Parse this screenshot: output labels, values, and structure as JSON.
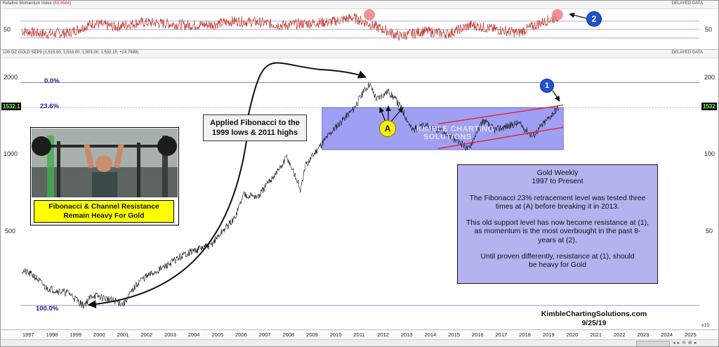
{
  "rmi_panel": {
    "title": "Relative Momentum Index",
    "value": "(69.4564)",
    "status": "DELAYED DATA",
    "y_tick": "50"
  },
  "price_panel": {
    "title": "100 OZ GOLD SEP9 (1,515.50, 1,533.00, 1,503.00, 1,532.10, +24.7999)",
    "status": "DELAYED DATA",
    "last_price_left": "1532.1",
    "last_price_right": "1532",
    "left_ticks": [
      "2000",
      "1000",
      "500"
    ],
    "right_ticks": [
      "200",
      "100",
      "50"
    ],
    "x10_label": "x10"
  },
  "fib_labels": {
    "top": "0.0%",
    "mid": "23.6%",
    "bottom": "100.0%"
  },
  "callout_fib": {
    "line1": "Applied Fibonacci to the",
    "line2": "1999 lows & 2011 highs"
  },
  "photo_caption": {
    "line1": "Fibonacci & Channel Resistance",
    "line2": "Remain Heavy For Gold"
  },
  "info_box": {
    "title1": "Gold Weekly",
    "title2": "1997 to Present",
    "p1": "The Fibonacci 23% retracement level was tested three times at (A) before breaking it in 2013.",
    "p2": "This old support level has now become resistance at (1), as momentum is the most overbought in the past 8-years at (2).",
    "p3": "Until proven differently, resistance at (1), should be heavy for Gold"
  },
  "markers": {
    "one": "1",
    "two": "2",
    "a": "A"
  },
  "watermark": {
    "line1": "KIMBLE CHARTING",
    "line2": "SOLUTIONS"
  },
  "credit": {
    "site": "KimbleChartingSolutions.com",
    "date": "9/25/19"
  },
  "colors": {
    "price_line": "#111111",
    "rmi_line": "#c0392b",
    "fib_box": "#8080f0",
    "channel": "#e0242c",
    "badge_blue": "#1d55cf",
    "callout_yellow": "#ffff00",
    "info_box": "#b3b3f0",
    "fib_line": "#7070c0"
  },
  "chart_data": [
    {
      "type": "line",
      "title": "Relative Momentum Index",
      "series": [
        {
          "name": "Relative Momentum Index",
          "x": [
            1997,
            1998,
            1999,
            2000,
            2001,
            2002,
            2003,
            2004,
            2005,
            2006,
            2007,
            2008,
            2009,
            2010,
            2011,
            2012,
            2013,
            2014,
            2015,
            2016,
            2017,
            2018,
            2019,
            2019.7
          ],
          "values": [
            45,
            40,
            42,
            58,
            52,
            60,
            58,
            55,
            56,
            62,
            60,
            55,
            58,
            60,
            68,
            52,
            36,
            45,
            40,
            55,
            48,
            42,
            60,
            69.5
          ]
        }
      ],
      "ylim": [
        20,
        80
      ],
      "y_ticks": [
        50
      ]
    },
    {
      "type": "line",
      "title": "100 OZ GOLD SEP9",
      "x_ticks": [
        "1997",
        "1998",
        "1999",
        "2000",
        "2001",
        "2002",
        "2003",
        "2004",
        "2005",
        "2006",
        "2007",
        "2008",
        "2009",
        "2010",
        "2011",
        "2012",
        "2013",
        "2014",
        "2015",
        "2016",
        "2017",
        "2018",
        "2019",
        "2020",
        "2021",
        "2022",
        "2023",
        "2024",
        "2025"
      ],
      "series": [
        {
          "name": "100 OZ GOLD SEP9",
          "x": [
            1997,
            1997.5,
            1998,
            1998.5,
            1999,
            1999.6,
            2000,
            2001,
            2001.3,
            2002,
            2003,
            2004,
            2005,
            2006,
            2006.4,
            2007,
            2008,
            2008.2,
            2008.8,
            2009,
            2010,
            2011,
            2011.7,
            2012,
            2012.5,
            2013,
            2013.5,
            2014,
            2015,
            2015.9,
            2016.5,
            2017,
            2018,
            2018.6,
            2019,
            2019.7
          ],
          "values": [
            350,
            335,
            300,
            292,
            285,
            255,
            280,
            265,
            258,
            320,
            360,
            410,
            440,
            560,
            700,
            680,
            900,
            980,
            720,
            900,
            1200,
            1500,
            1900,
            1650,
            1780,
            1550,
            1250,
            1300,
            1200,
            1050,
            1360,
            1250,
            1330,
            1180,
            1300,
            1532
          ]
        }
      ],
      "y_scale": "log",
      "ylim": [
        240,
        2350
      ],
      "y_ticks": [
        500,
        1000,
        2000
      ],
      "annotations": {
        "fibonacci": {
          "low_1999": 255,
          "high_2011": 1920,
          "level_23_6": 1530
        },
        "channel": {
          "start_year": 2014.6,
          "end_year": 2019.9,
          "upper": [
            1320,
            1565
          ],
          "lower": [
            1055,
            1280
          ]
        }
      }
    }
  ]
}
